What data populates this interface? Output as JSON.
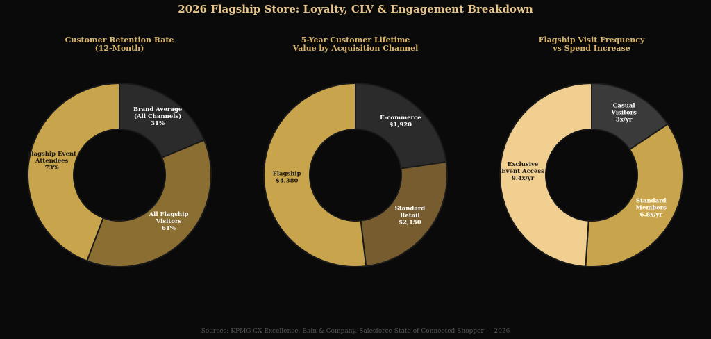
{
  "title": "2026 Flagship Store: Loyalty, CLV & Engagement Breakdown",
  "source": "Sources: KPMG CX Excellence, Bain & Company, Salesforce State of Connected Shopper — 2026",
  "chart_data": [
    {
      "type": "pie",
      "title_lines": [
        "Customer Retention Rate",
        "(12-Month)"
      ],
      "start_angle_deg": 0,
      "slices": [
        {
          "label_lines": [
            "Brand Average",
            "(All Channels)",
            "31%"
          ],
          "value": 31,
          "color": "#2b2b2b",
          "text_color": "#ffffff"
        },
        {
          "label_lines": [
            "All Flagship",
            "Visitors",
            "61%"
          ],
          "value": 61,
          "color": "#8a6e32",
          "text_color": "#ffffff"
        },
        {
          "label_lines": [
            "Flagship Event",
            "Attendees",
            "73%"
          ],
          "value": 73,
          "color": "#c8a54d",
          "text_color": "#1a1a1a"
        }
      ]
    },
    {
      "type": "pie",
      "title_lines": [
        "5-Year Customer Lifetime",
        "Value by Acquisition Channel"
      ],
      "start_angle_deg": 0,
      "slices": [
        {
          "label_lines": [
            "E-commerce",
            "$1,920"
          ],
          "value": 1920,
          "color": "#2b2b2b",
          "text_color": "#ffffff"
        },
        {
          "label_lines": [
            "Standard",
            "Retail",
            "$2,150"
          ],
          "value": 2150,
          "color": "#775c2f",
          "text_color": "#ffffff"
        },
        {
          "label_lines": [
            "Flagship",
            "$4,380"
          ],
          "value": 4380,
          "color": "#c8a54d",
          "text_color": "#1a1a1a"
        }
      ]
    },
    {
      "type": "pie",
      "title_lines": [
        "Flagship Visit Frequency",
        "vs Spend Increase"
      ],
      "start_angle_deg": 0,
      "slices": [
        {
          "label_lines": [
            "Casual",
            "Visitors",
            "3x/yr"
          ],
          "value": 3,
          "color": "#3a3a3a",
          "text_color": "#ffffff"
        },
        {
          "label_lines": [
            "Standard",
            "Members",
            "6.8x/yr"
          ],
          "value": 6.8,
          "color": "#c8a54d",
          "text_color": "#ffffff"
        },
        {
          "label_lines": [
            "Exclusive",
            "Event Access",
            "9.4x/yr"
          ],
          "value": 9.4,
          "color": "#f0cf91",
          "text_color": "#1a1a1a"
        }
      ]
    }
  ]
}
